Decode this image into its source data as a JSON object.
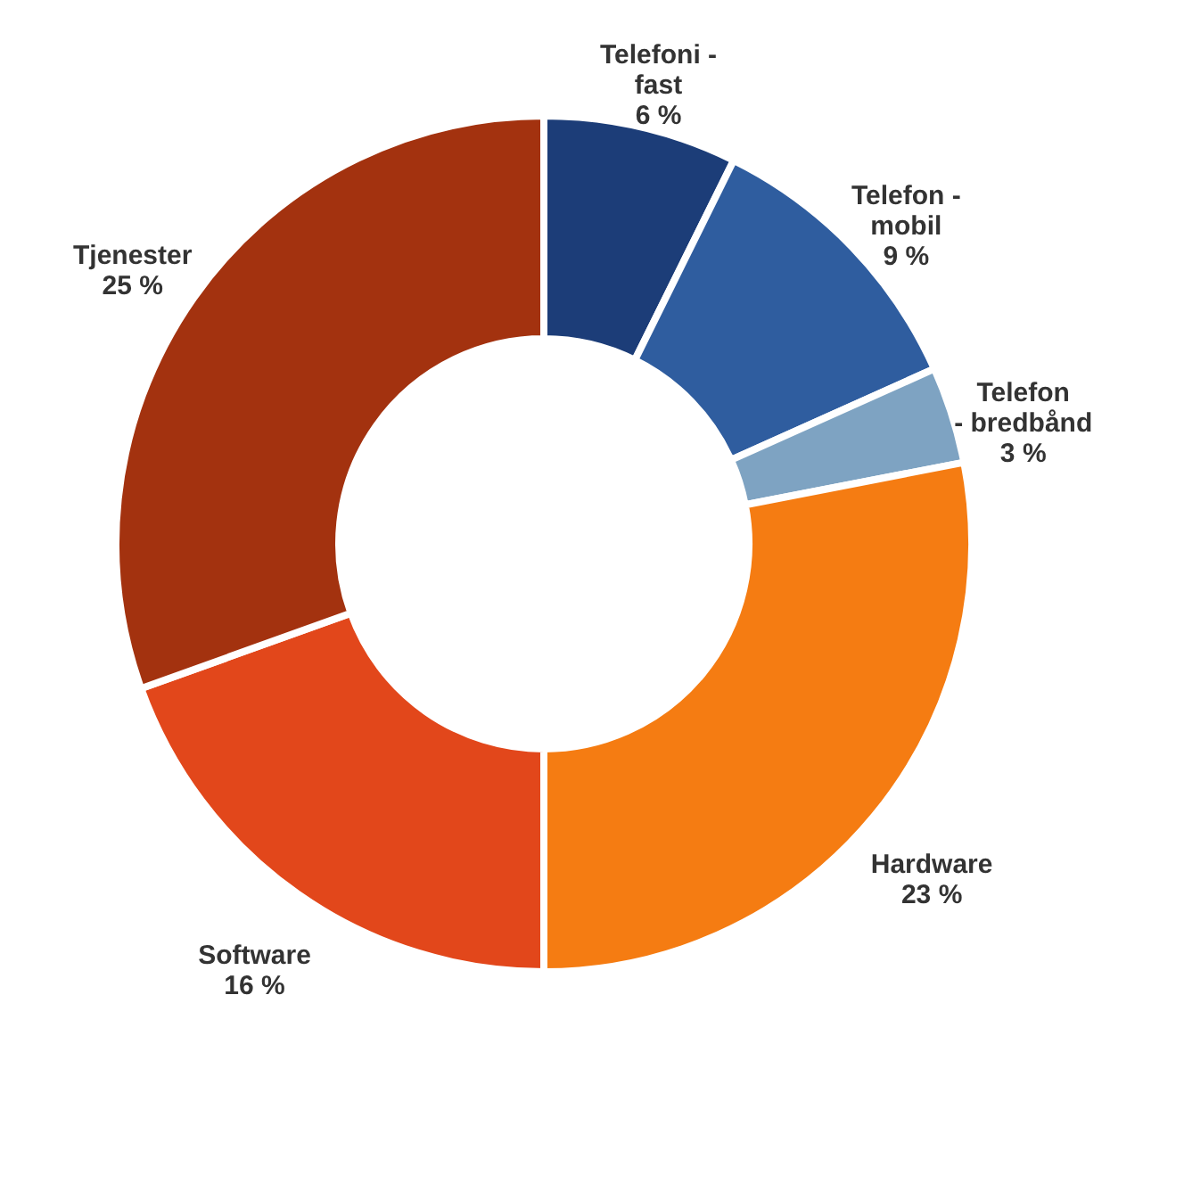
{
  "chart_data": {
    "type": "donut",
    "categories": [
      "Telefoni -\nfast",
      "Telefon -\nmobil",
      "Telefon\n- bredbånd",
      "Hardware",
      "Software",
      "Tjenester"
    ],
    "values": [
      6,
      9,
      3,
      23,
      16,
      25
    ],
    "value_labels": [
      "6 %",
      "9 %",
      "3 %",
      "23 %",
      "16 %",
      "25 %"
    ],
    "colors": [
      "#1c3d78",
      "#2f5d9f",
      "#7ea3c2",
      "#f57c12",
      "#e2471b",
      "#a3320f"
    ],
    "legend": false
  }
}
